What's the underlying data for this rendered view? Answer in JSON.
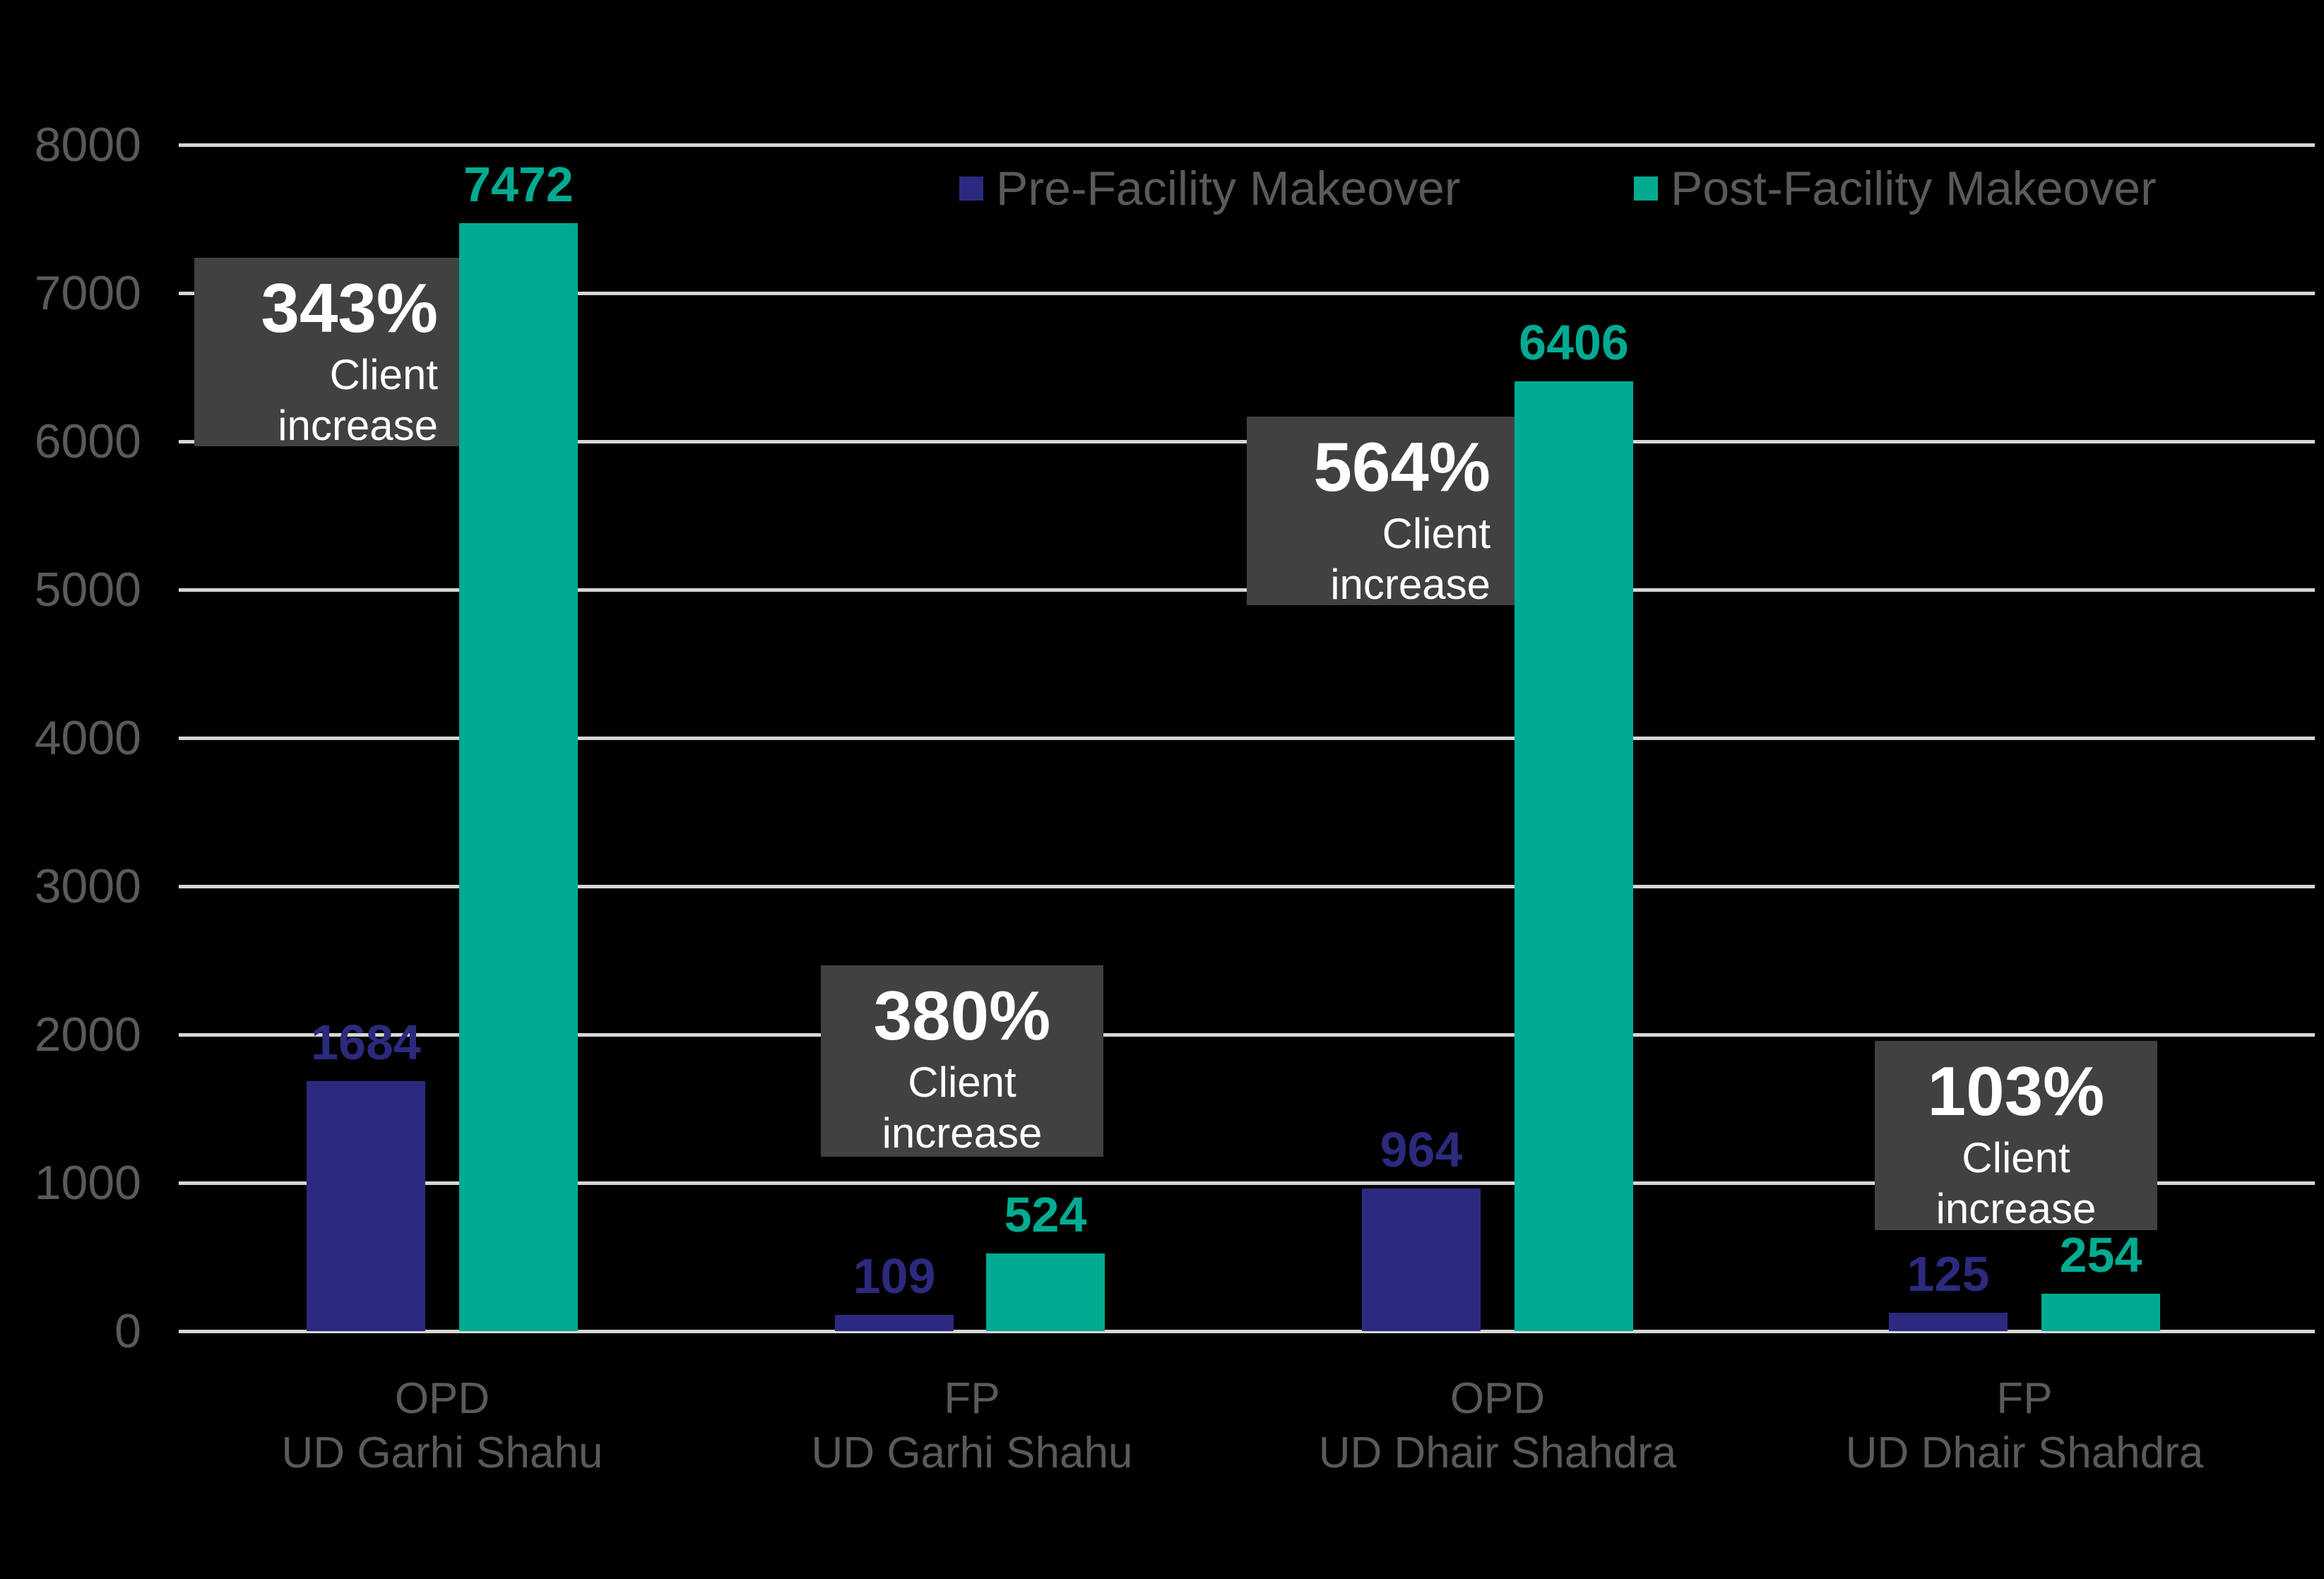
{
  "chart_data": {
    "type": "bar",
    "title": "",
    "xlabel": "",
    "ylabel": "",
    "ylim": [
      0,
      8000
    ],
    "yticks": [
      0,
      1000,
      2000,
      3000,
      4000,
      5000,
      6000,
      7000,
      8000
    ],
    "grid": true,
    "legend_position": "top",
    "background_color": "#000000",
    "gridline_color": "#D6D6D6",
    "axis_text_color": "#5A5A5A",
    "annotation_box_color": "#414141",
    "annotation_text_color": "#FFFFFF",
    "categories": [
      {
        "line1": "OPD",
        "line2": "UD Garhi Shahu"
      },
      {
        "line1": "FP",
        "line2": "UD Garhi Shahu"
      },
      {
        "line1": "OPD",
        "line2": "UD Dhair Shahdra"
      },
      {
        "line1": "FP",
        "line2": "UD Dhair Shahdra"
      }
    ],
    "series": [
      {
        "name": "Pre-Facility Makeover",
        "color": "#2B2A7E",
        "values": [
          1684,
          109,
          964,
          125
        ]
      },
      {
        "name": "Post-Facility Makeover",
        "color": "#00AB92",
        "values": [
          7472,
          524,
          6406,
          254
        ]
      }
    ],
    "annotations": [
      {
        "percent": "343%",
        "label": "Client increase"
      },
      {
        "percent": "380%",
        "label": "Client increase"
      },
      {
        "percent": "564%",
        "label": "Client increase"
      },
      {
        "percent": "103%",
        "label": "Client increase"
      }
    ]
  }
}
